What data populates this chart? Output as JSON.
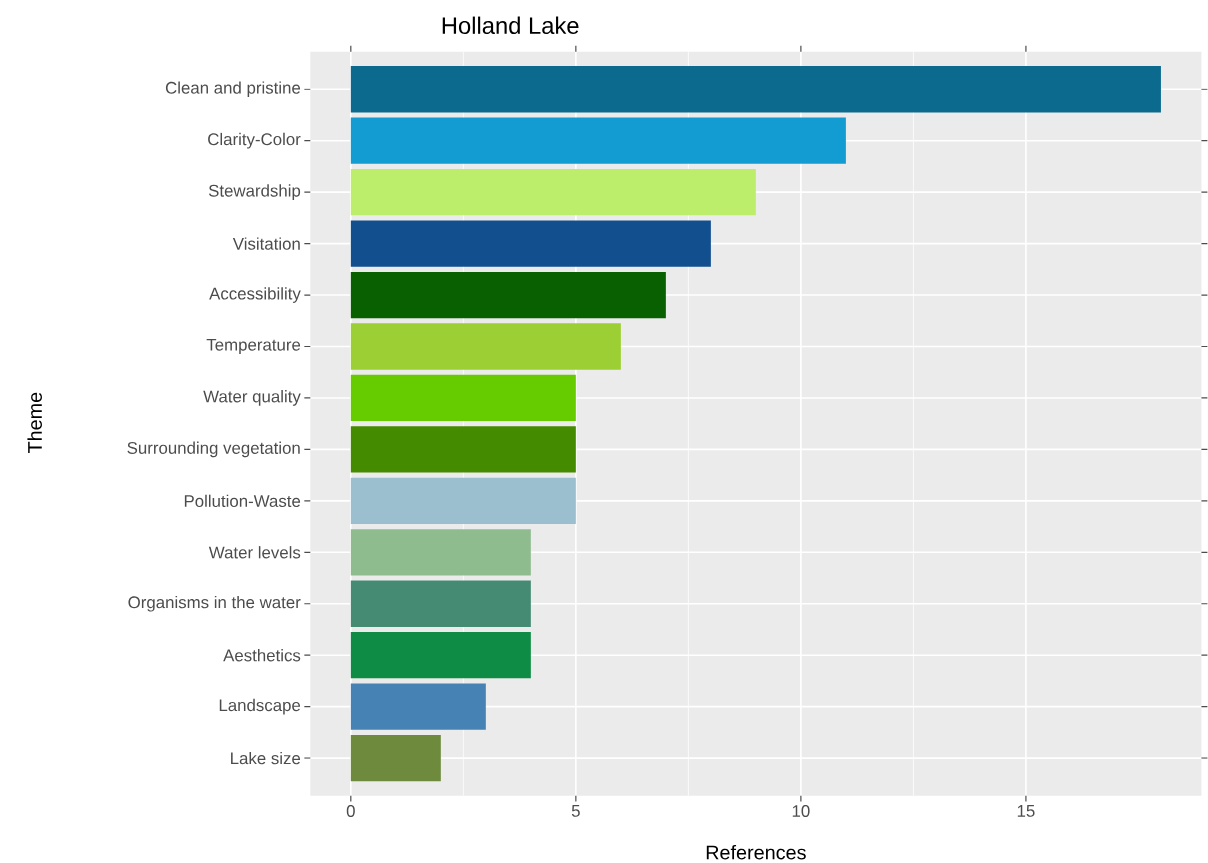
{
  "chart_data": {
    "type": "bar",
    "orientation": "horizontal",
    "title": "Holland Lake",
    "xlabel": "References",
    "ylabel": "Theme",
    "categories": [
      "Clean and pristine",
      "Clarity-Color",
      "Stewardship",
      "Visitation",
      "Accessibility",
      "Temperature",
      "Water quality",
      "Surrounding vegetation",
      "Pollution-Waste",
      "Water levels",
      "Organisms in the water",
      "Aesthetics",
      "Landscape",
      "Lake size"
    ],
    "values": [
      18,
      11,
      9,
      8,
      7,
      6,
      5,
      5,
      5,
      4,
      4,
      4,
      3,
      2
    ],
    "colors": [
      "#0b6a8e",
      "#129cd1",
      "#bdee6b",
      "#114f8e",
      "#086000",
      "#9ccf33",
      "#66cc00",
      "#458b00",
      "#9bbfce",
      "#8fbc8f",
      "#458b74",
      "#0e8b45",
      "#4682b4",
      "#6e8b3d"
    ],
    "xlim": [
      -0.9,
      18.9
    ],
    "xticks": [
      0,
      5,
      10,
      15
    ],
    "grid": true
  }
}
